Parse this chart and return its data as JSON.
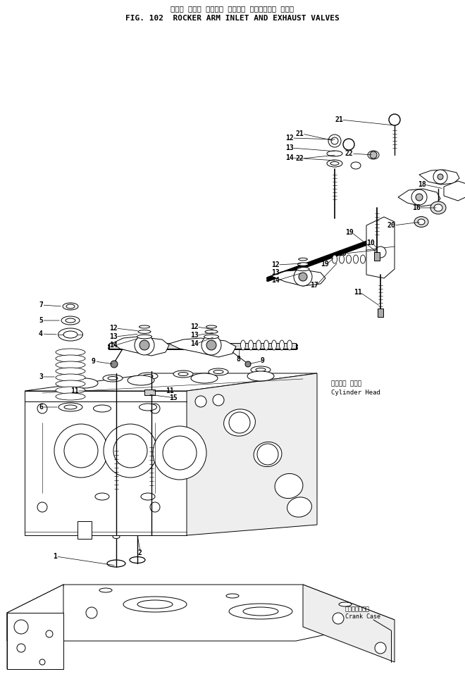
{
  "title_japanese": "ロッカ アーム インレト および・ エキゾースト バルブ",
  "title_english": "FIG. 102  ROCKER ARM INLET AND EXHAUST VALVES",
  "bg_color": "#ffffff",
  "line_color": "#000000",
  "fig_width": 6.6,
  "fig_height": 9.91,
  "dpi": 100,
  "cyl_head_jp": "シリンダ ヘッド",
  "cyl_head_en": "Cylinder Head",
  "crank_case_jp": "クランクケース",
  "crank_case_en": "Crank Case"
}
